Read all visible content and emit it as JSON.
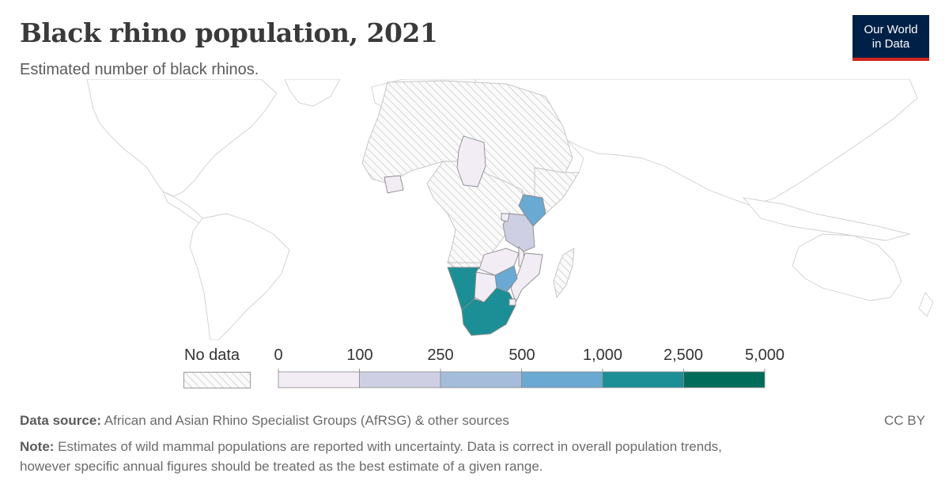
{
  "header": {
    "title": "Black rhino population, 2021",
    "subtitle": "Estimated number of black rhinos.",
    "logo_line1": "Our World",
    "logo_line2": "in Data"
  },
  "legend": {
    "no_data_label": "No data",
    "thresholds": [
      "0",
      "100",
      "250",
      "500",
      "1,000",
      "2,500",
      "5,000"
    ],
    "colors": [
      "#f2ecf5",
      "#cfcfe4",
      "#a5bddb",
      "#6aa9d1",
      "#1c8f96",
      "#016c59"
    ],
    "no_data_color": "#e8e8e8"
  },
  "map_data": {
    "metric": "Estimated number of black rhinos",
    "year": 2021,
    "countries": [
      {
        "name": "South Africa",
        "bin": "1,000–2,500"
      },
      {
        "name": "Namibia",
        "bin": "1,000–2,500"
      },
      {
        "name": "Kenya",
        "bin": "500–1,000"
      },
      {
        "name": "Zimbabwe",
        "bin": "500–1,000"
      },
      {
        "name": "Tanzania",
        "bin": "100–250"
      },
      {
        "name": "Botswana",
        "bin": "0–100"
      },
      {
        "name": "Zambia",
        "bin": "0–100"
      },
      {
        "name": "Malawi",
        "bin": "0–100"
      },
      {
        "name": "Eswatini",
        "bin": "0–100"
      },
      {
        "name": "Chad",
        "bin": "0–100"
      },
      {
        "name": "Côte d'Ivoire",
        "bin": "0–100"
      },
      {
        "name": "Rwanda",
        "bin": "0–100"
      },
      {
        "name": "Mozambique",
        "bin": "0–100"
      }
    ]
  },
  "footer": {
    "source_label": "Data source:",
    "source_text": " African and Asian Rhino Specialist Groups (AfRSG) & other sources",
    "license": "CC BY",
    "note_label": "Note:",
    "note_line1": " Estimates of wild mammal populations are reported with uncertainty. Data is correct in overall population trends,",
    "note_line2": "however specific annual figures should be treated as the best estimate of a given range."
  }
}
